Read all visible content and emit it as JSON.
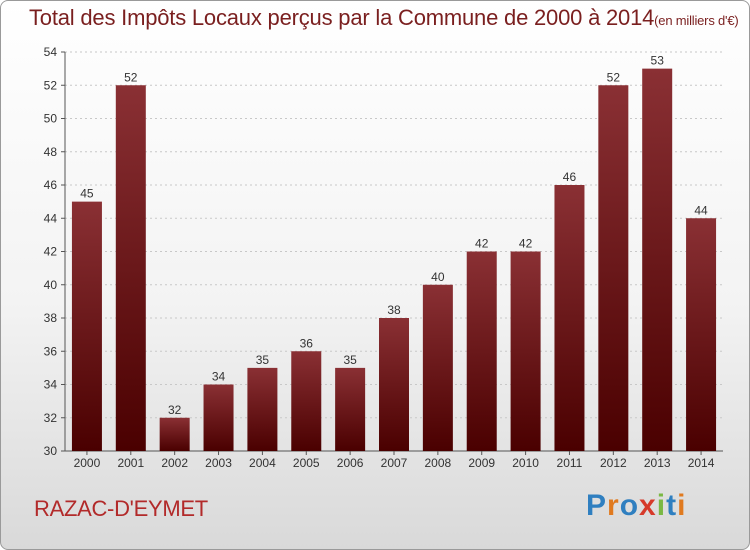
{
  "title": "Total des Impôts Locaux perçus par la Commune de 2000 à 2014",
  "unit": "(en milliers d'€)",
  "commune": "RAZAC-D'EYMET",
  "brand": {
    "letters": [
      {
        "char": "P",
        "color": "#2f7fc0"
      },
      {
        "char": "r",
        "color": "#e07a1f"
      },
      {
        "char": "o",
        "color": "#2f7fc0"
      },
      {
        "char": "x",
        "color": "#d63a2a"
      },
      {
        "char": "i",
        "color": "#7ab843"
      },
      {
        "char": "t",
        "color": "#2f7fc0"
      },
      {
        "char": "i",
        "color": "#e07a1f"
      }
    ]
  },
  "chart_data": {
    "type": "bar",
    "title": "Total des Impôts Locaux perçus par la Commune de 2000 à 2014",
    "unit": "(en milliers d'€)",
    "categories": [
      "2000",
      "2001",
      "2002",
      "2003",
      "2004",
      "2005",
      "2006",
      "2007",
      "2008",
      "2009",
      "2010",
      "2011",
      "2012",
      "2013",
      "2014"
    ],
    "values": [
      45,
      52,
      32,
      34,
      35,
      36,
      35,
      38,
      40,
      42,
      42,
      46,
      52,
      53,
      44
    ],
    "ylim": [
      30,
      54
    ],
    "yticks": [
      30,
      32,
      34,
      36,
      38,
      40,
      42,
      44,
      46,
      48,
      50,
      52,
      54
    ],
    "grid": true,
    "bar_color_top": "#8a3034",
    "bar_color_bottom": "#4a0000"
  }
}
